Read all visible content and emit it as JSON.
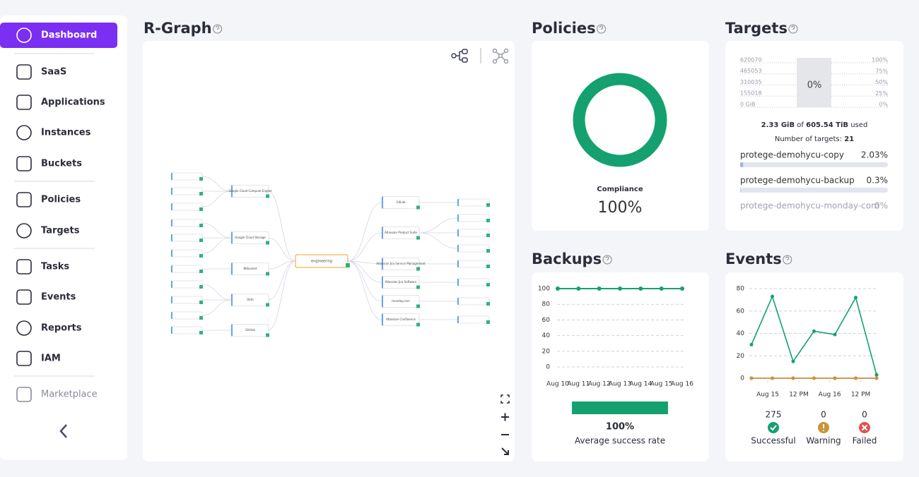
{
  "sidebar": {
    "items": [
      "Dashboard",
      "SaaS",
      "Applications",
      "Instances",
      "Buckets",
      "Policies",
      "Targets",
      "Tasks",
      "Events",
      "Reports",
      "IAM",
      "Marketplace"
    ]
  },
  "rgraph": {
    "title": "R-Graph",
    "hub": "engineering",
    "groups": [
      "Google Cloud Compute Engine",
      "Google Cloud Storage",
      "Bitbucket",
      "Okta",
      "GitHub",
      "GitLab",
      "Atlassian Product Suite",
      "Atlassian Jira Service Management",
      "Atlassian Jira Software",
      "monday.com",
      "Atlassian Confluence"
    ]
  },
  "targets_summary": {
    "used": "2.33 GiB",
    "of": "of",
    "total": "605.54 TiB",
    "suffix": "used",
    "count_label": "Number of targets:",
    "count": 21
  },
  "chart_data": [
    {
      "type": "pie",
      "title": "Policies",
      "categories": [
        "Compliance"
      ],
      "values": [
        100
      ],
      "value_labels": [
        "100%"
      ],
      "color": "#15a06f"
    },
    {
      "type": "bar",
      "title": "Targets",
      "values": [
        0
      ],
      "value_labels": [
        "0%"
      ],
      "axis": "y2",
      "color": "#15a06f",
      "ylim": [
        0,
        620070
      ],
      "yticks": [
        620070,
        465053,
        310035,
        155018,
        {
          "value": 0,
          "label": "0 GiB"
        }
      ],
      "y2lim": [
        0,
        100
      ],
      "y2ticks": [
        {
          "value": 100,
          "label": "100%"
        },
        {
          "value": 75,
          "label": "75%"
        },
        {
          "value": 50,
          "label": "50%"
        },
        {
          "value": 25,
          "label": "25%"
        },
        {
          "value": 0,
          "label": "0%"
        }
      ]
    },
    {
      "type": "hbar",
      "categories": [
        "protege-demohycu-copy",
        "protege-demohycu-backup",
        "protege-demohycu-monday-com"
      ],
      "values": [
        2.03,
        0.3,
        0
      ],
      "value_labels": [
        "2.03%",
        "0.3%",
        "0%"
      ],
      "xlim": [
        0,
        100
      ],
      "color": "#9fb3ea"
    },
    {
      "type": "line",
      "title": "Backups",
      "categories": [
        "Aug 10",
        "Aug 11",
        "Aug 12",
        "Aug 13",
        "Aug 14",
        "Aug 15",
        "Aug 16"
      ],
      "values": [
        100,
        100,
        100,
        100,
        100,
        100,
        100
      ],
      "color": "#15a06f",
      "ylim": [
        0,
        100
      ],
      "yticks": [
        0,
        20,
        40,
        60,
        80,
        100
      ],
      "grid": true,
      "summary": {
        "values": [
          100
        ],
        "value_labels": [
          "100%"
        ],
        "label": "Average success rate"
      }
    },
    {
      "type": "line",
      "title": "Events",
      "x": [
        0,
        1,
        2,
        3,
        4,
        5,
        6
      ],
      "xlim": [
        0,
        6
      ],
      "xticks": [
        {
          "value": 0.78,
          "label": "Aug 15"
        },
        {
          "value": 2.27,
          "label": "12 PM"
        },
        {
          "value": 3.75,
          "label": "Aug 16"
        },
        {
          "value": 5.24,
          "label": "12 PM"
        }
      ],
      "ylim": [
        0,
        80
      ],
      "yticks": [
        0,
        20,
        40,
        60,
        80
      ],
      "grid": true,
      "series": [
        {
          "name": "Successful",
          "color": "#15a06f",
          "values": [
            30,
            73,
            15,
            42,
            39,
            72,
            3
          ]
        },
        {
          "name": "Failed",
          "color": "#e0524f",
          "values": [
            0,
            0,
            0,
            0,
            0,
            0,
            0
          ]
        },
        {
          "name": "Warning",
          "color": "#c9943a",
          "values": [
            0,
            0,
            0,
            0,
            0,
            0,
            0
          ]
        }
      ],
      "totals": [
        275,
        0,
        0
      ]
    }
  ]
}
